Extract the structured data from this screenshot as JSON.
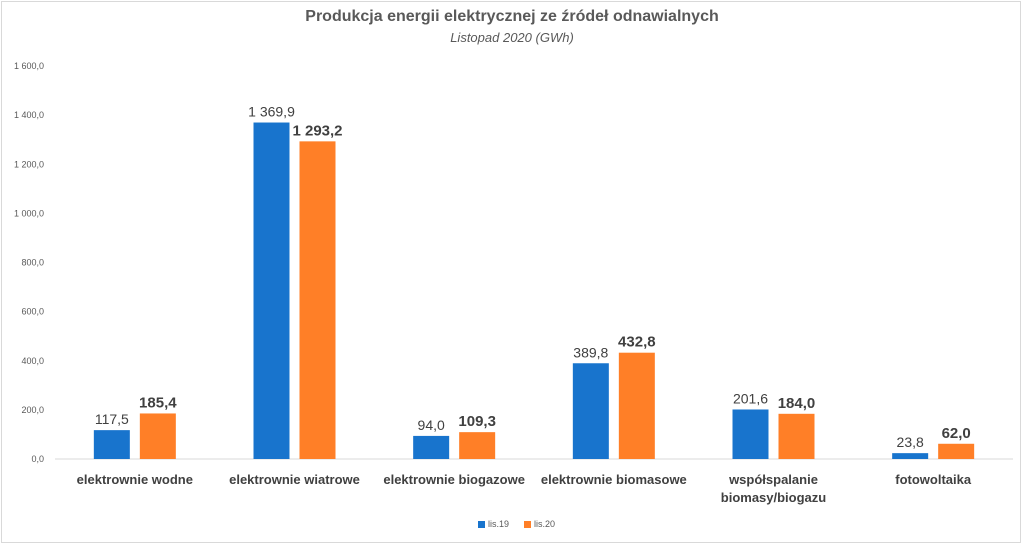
{
  "chart_data": {
    "type": "bar",
    "title": "Produkcja energii elektrycznej ze źródeł odnawialnych",
    "subtitle": "Listopad 2020 (GWh)",
    "categories": [
      [
        "elektrownie wodne"
      ],
      [
        "elektrownie wiatrowe"
      ],
      [
        "elektrownie biogazowe"
      ],
      [
        "elektrownie biomasowe"
      ],
      [
        "współspalanie",
        "biomasy/biogazu"
      ],
      [
        "fotowoltaika"
      ]
    ],
    "series": [
      {
        "name": "lis.19",
        "color": "#1874cd",
        "values": [
          117.5,
          1369.9,
          94.0,
          389.8,
          201.6,
          23.8
        ],
        "labels": [
          "117,5",
          "1 369,9",
          "94,0",
          "389,8",
          "201,6",
          "23,8"
        ]
      },
      {
        "name": "lis.20",
        "color": "#ff7f27",
        "values": [
          185.4,
          1293.2,
          109.3,
          432.8,
          184.0,
          62.0
        ],
        "labels": [
          "185,4",
          "1 293,2",
          "109,3",
          "432,8",
          "184,0",
          "62,0"
        ]
      }
    ],
    "ylim": [
      0,
      1600
    ],
    "yticks": [
      "0,0",
      "200,0",
      "400,0",
      "600,0",
      "800,0",
      "1 000,0",
      "1 200,0",
      "1 400,0",
      "1 600,0"
    ],
    "grid": false,
    "legend": "bottom"
  }
}
